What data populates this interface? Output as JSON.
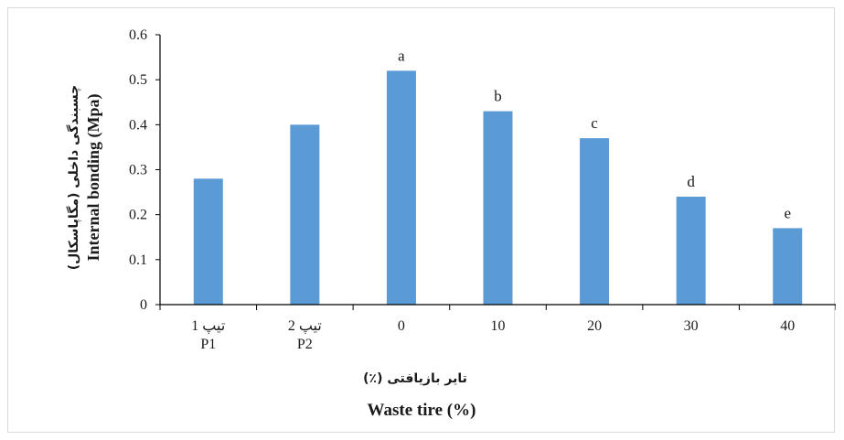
{
  "chart_data": {
    "type": "bar",
    "categories": [
      {
        "line1": "تیپ 1",
        "line2": "P1"
      },
      {
        "line1": "تیپ 2",
        "line2": "P2"
      },
      {
        "line1": "0",
        "line2": ""
      },
      {
        "line1": "10",
        "line2": ""
      },
      {
        "line1": "20",
        "line2": ""
      },
      {
        "line1": "30",
        "line2": ""
      },
      {
        "line1": "40",
        "line2": ""
      }
    ],
    "values": [
      0.28,
      0.4,
      0.52,
      0.43,
      0.37,
      0.24,
      0.17
    ],
    "bar_labels": [
      "",
      "",
      "a",
      "b",
      "c",
      "d",
      "e"
    ],
    "xlabel_fa": "تایر بازیافتی (٪)",
    "xlabel_en": "Waste tire (%)",
    "ylabel_en": "Internal bonding (Mpa)",
    "ylabel_fa": "چسبندگی داخلی (مگاپاسکال)",
    "yticks": [
      "0",
      "0.1",
      "0.2",
      "0.3",
      "0.4",
      "0.5",
      "0.6"
    ],
    "ylim": [
      0,
      0.6
    ],
    "bar_color": "#5b9bd5",
    "grid": false
  }
}
